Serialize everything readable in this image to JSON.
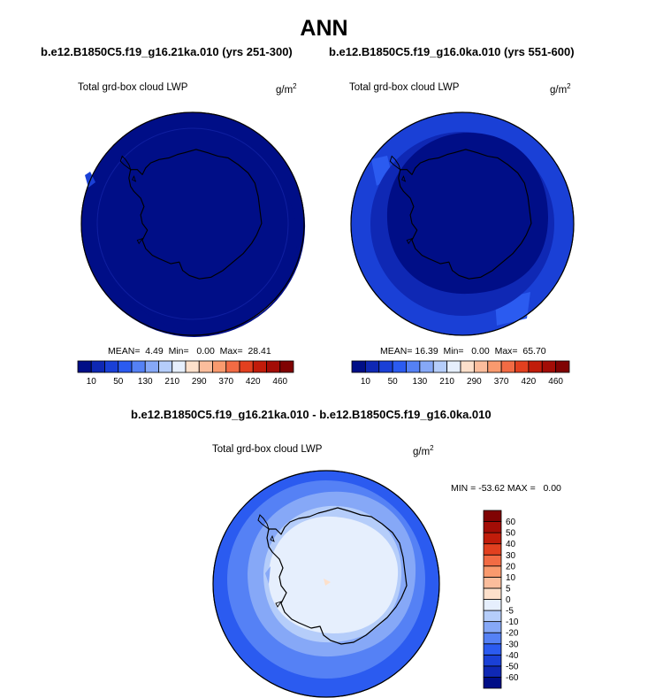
{
  "page_title": "ANN",
  "panels": [
    {
      "case_title": "b.e12.B1850C5.f19_g16.21ka.010 (yrs 251-300)",
      "variable": "Total grd-box cloud LWP",
      "units_base": "g/m",
      "units_exp": "2",
      "stats": "MEAN=  4.49  Min=   0.00  Max=  28.41"
    },
    {
      "case_title": "b.e12.B1850C5.f19_g16.0ka.010 (yrs 551-600)",
      "variable": "Total grd-box cloud LWP",
      "units_base": "g/m",
      "units_exp": "2",
      "stats": "MEAN= 16.39  Min=   0.00  Max=  65.70"
    },
    {
      "case_title": "b.e12.B1850C5.f19_g16.21ka.010 - b.e12.B1850C5.f19_g16.0ka.010",
      "variable": "Total grd-box cloud LWP",
      "units_base": "g/m",
      "units_exp": "2",
      "stats": "MIN = -53.62 MAX =   0.00"
    }
  ],
  "chart_data": [
    {
      "type": "heatmap",
      "projection": "south polar stereographic",
      "title": "b.e12.B1850C5.f19_g16.21ka.010 (yrs 251-300)",
      "variable": "Total grd-box cloud LWP",
      "units": "g/m2",
      "mean": 4.49,
      "min": 0.0,
      "max": 28.41,
      "colorbar": {
        "orientation": "horizontal",
        "levels": [
          10,
          30,
          50,
          90,
          130,
          170,
          210,
          250,
          290,
          330,
          370,
          400,
          420,
          440,
          460
        ],
        "tick_labels": [
          "10",
          "50",
          "130",
          "210",
          "290",
          "370",
          "420",
          "460"
        ],
        "colors": [
          "#000e87",
          "#0f28b4",
          "#1a40d6",
          "#2b5bf0",
          "#5581f5",
          "#86a8f7",
          "#b5cdfa",
          "#e6effd",
          "#fde0cb",
          "#fbbd9c",
          "#f99a6e",
          "#f26b44",
          "#e2401f",
          "#c11c0a",
          "#a30d06",
          "#800303"
        ]
      },
      "regions": [
        {
          "range": "0-10",
          "location": "most of domain"
        },
        {
          "range": "10-30",
          "location": "small patches near outer edge"
        }
      ]
    },
    {
      "type": "heatmap",
      "projection": "south polar stereographic",
      "title": "b.e12.B1850C5.f19_g16.0ka.010 (yrs 551-600)",
      "variable": "Total grd-box cloud LWP",
      "units": "g/m2",
      "mean": 16.39,
      "min": 0.0,
      "max": 65.7,
      "colorbar": {
        "orientation": "horizontal",
        "levels": [
          10,
          30,
          50,
          90,
          130,
          170,
          210,
          250,
          290,
          330,
          370,
          400,
          420,
          440,
          460
        ],
        "tick_labels": [
          "10",
          "50",
          "130",
          "210",
          "290",
          "370",
          "420",
          "460"
        ],
        "colors": [
          "#000e87",
          "#0f28b4",
          "#1a40d6",
          "#2b5bf0",
          "#5581f5",
          "#86a8f7",
          "#b5cdfa",
          "#e6effd",
          "#fde0cb",
          "#fbbd9c",
          "#f99a6e",
          "#f26b44",
          "#e2401f",
          "#c11c0a",
          "#a30d06",
          "#800303"
        ]
      },
      "regions": [
        {
          "range": "0-10",
          "location": "Antarctic continent"
        },
        {
          "range": "10-30",
          "location": "ring over surrounding ocean"
        },
        {
          "range": "30-50",
          "location": "outer ring"
        },
        {
          "range": "50-90",
          "location": "outer edge patches"
        }
      ]
    },
    {
      "type": "heatmap",
      "projection": "south polar stereographic",
      "title": "b.e12.B1850C5.f19_g16.21ka.010 - b.e12.B1850C5.f19_g16.0ka.010",
      "variable": "Total grd-box cloud LWP",
      "units": "g/m2",
      "min": -53.62,
      "max": 0.0,
      "colorbar": {
        "orientation": "vertical",
        "levels": [
          -60,
          -50,
          -40,
          -30,
          -20,
          -10,
          -5,
          0,
          5,
          10,
          20,
          30,
          40,
          50,
          60
        ],
        "tick_labels": [
          "60",
          "50",
          "40",
          "30",
          "20",
          "10",
          "5",
          "0",
          "-5",
          "-10",
          "-20",
          "-30",
          "-40",
          "-50",
          "-60"
        ],
        "colors": [
          "#000e87",
          "#0f28b4",
          "#1a40d6",
          "#2b5bf0",
          "#5581f5",
          "#86a8f7",
          "#b5cdfa",
          "#e6effd",
          "#fde0cb",
          "#fbbd9c",
          "#f99a6e",
          "#f26b44",
          "#e2401f",
          "#c11c0a",
          "#a30d06",
          "#800303"
        ]
      },
      "regions": [
        {
          "range": "-5-0",
          "location": "Antarctic continent"
        },
        {
          "range": "-10--5",
          "location": "coastal ring"
        },
        {
          "range": "-20--10",
          "location": "ring"
        },
        {
          "range": "-30--20",
          "location": "ring"
        },
        {
          "range": "-40--30",
          "location": "outer ocean"
        }
      ]
    }
  ]
}
